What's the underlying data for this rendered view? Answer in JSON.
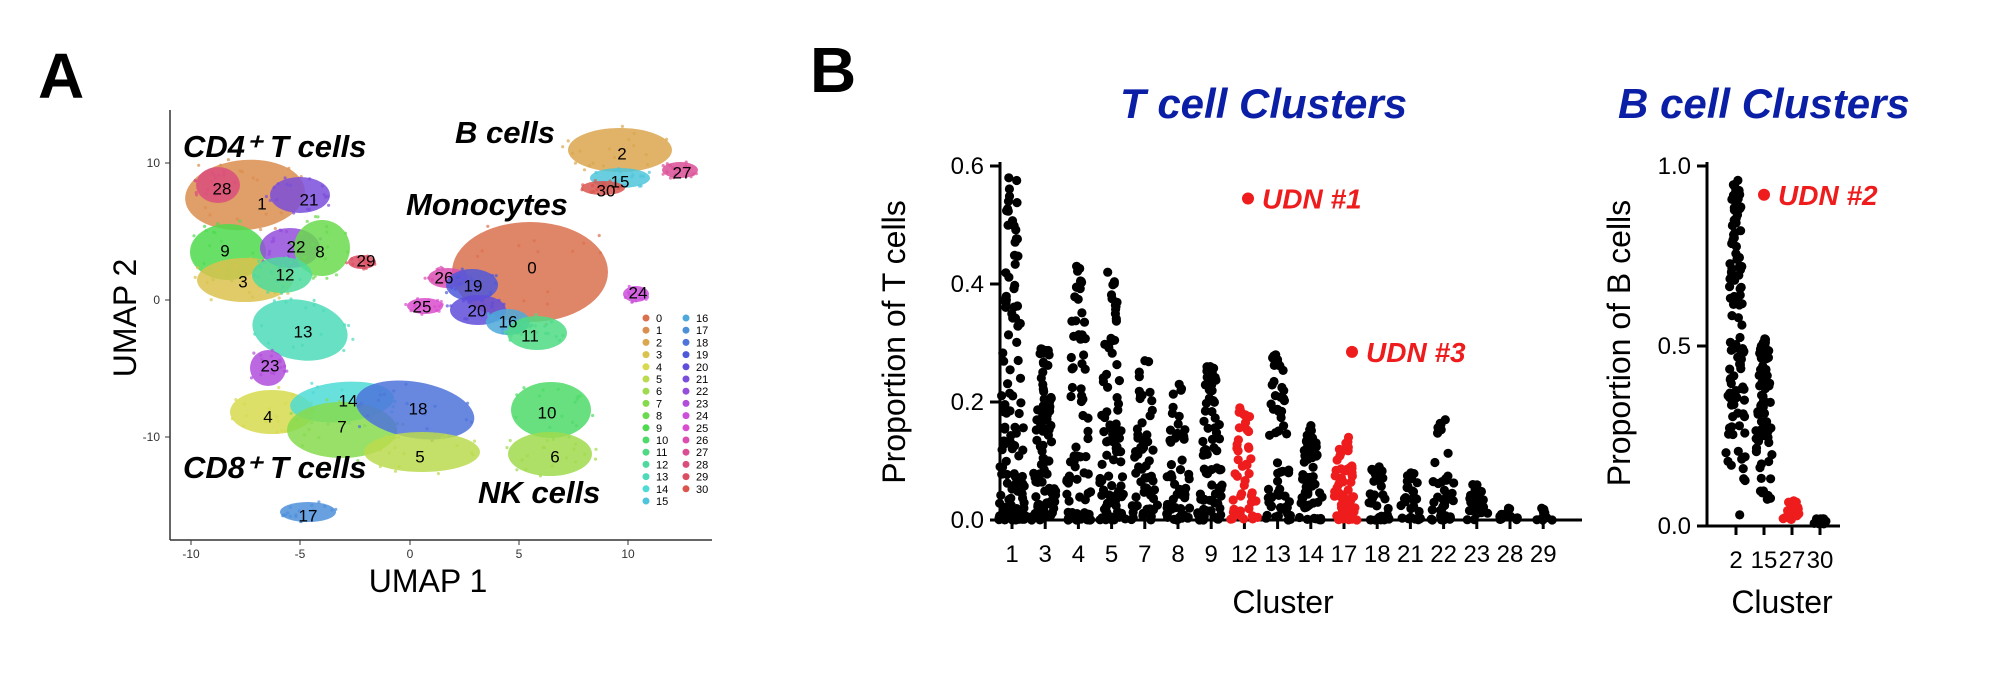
{
  "panels": {
    "a": "A",
    "b": "B"
  },
  "umap": {
    "xlabel": "UMAP 1",
    "ylabel": "UMAP 2",
    "xticks": [
      "-10",
      "-5",
      "0",
      "5",
      "10"
    ],
    "yticks": [
      "10",
      "0",
      "-10"
    ],
    "celltypes": {
      "cd4": "CD4⁺ T cells",
      "b": "B cells",
      "mono": "Monocytes",
      "cd8": "CD8⁺ T cells",
      "nk": "NK cells"
    },
    "cluster_labels": [
      "0",
      "1",
      "2",
      "3",
      "4",
      "5",
      "6",
      "7",
      "8",
      "9",
      "10",
      "11",
      "12",
      "13",
      "14",
      "15",
      "16",
      "17",
      "18",
      "19",
      "20",
      "21",
      "22",
      "23",
      "24",
      "25",
      "26",
      "27",
      "28",
      "29",
      "30"
    ],
    "legend": [
      "0",
      "1",
      "2",
      "3",
      "4",
      "5",
      "6",
      "7",
      "8",
      "9",
      "10",
      "11",
      "12",
      "13",
      "14",
      "15",
      "16",
      "17",
      "18",
      "19",
      "20",
      "21",
      "22",
      "23",
      "24",
      "25",
      "26",
      "27",
      "28",
      "29",
      "30"
    ]
  },
  "colors": {
    "black": "#000000",
    "red": "#ee1c1c",
    "title_blue": "#0b1ea6"
  },
  "chart_data": [
    {
      "type": "scatter",
      "title": "T cell Clusters",
      "xlabel": "Cluster",
      "ylabel": "Proportion of T cells",
      "ylim": [
        0,
        0.6
      ],
      "yticks": [
        "0.0",
        "0.2",
        "0.4",
        "0.6"
      ],
      "categories": [
        "1",
        "3",
        "4",
        "5",
        "7",
        "8",
        "9",
        "12",
        "13",
        "14",
        "17",
        "18",
        "21",
        "22",
        "23",
        "28",
        "29"
      ],
      "max_values": [
        0.58,
        0.29,
        0.43,
        0.42,
        0.27,
        0.23,
        0.26,
        0.19,
        0.28,
        0.16,
        0.14,
        0.09,
        0.08,
        0.17,
        0.06,
        0.02,
        0.02
      ],
      "highlighted_red": [
        "12",
        "17"
      ],
      "annotations": [
        {
          "text": "UDN #1",
          "y": 0.545
        },
        {
          "text": "UDN #3",
          "y": 0.285
        }
      ]
    },
    {
      "type": "scatter",
      "title": "B cell Clusters",
      "xlabel": "Cluster",
      "ylabel": "Proportion of B cells",
      "ylim": [
        0,
        1.0
      ],
      "yticks": [
        "0.0",
        "0.5",
        "1.0"
      ],
      "categories": [
        "2",
        "15",
        "27",
        "30"
      ],
      "max_values": [
        0.96,
        0.52,
        0.07,
        0.02
      ],
      "highlighted_red": [
        "27"
      ],
      "annotations": [
        {
          "text": "UDN #2",
          "y": 0.92
        }
      ]
    }
  ]
}
